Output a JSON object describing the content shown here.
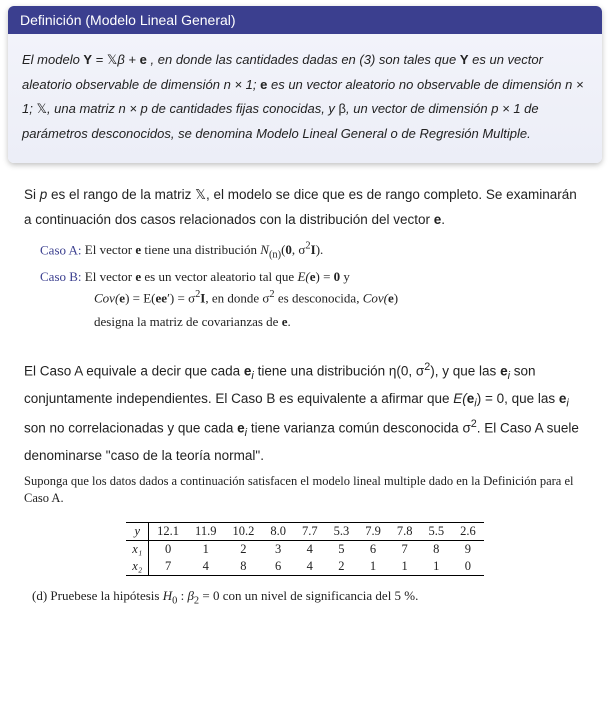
{
  "defbox": {
    "title": "Definición (Modelo Lineal General)",
    "body": {
      "t1": "El modelo ",
      "eq1a": "Y",
      "eq1b": " = ",
      "eq1c": "𝕏",
      "eq1d": "β",
      "eq1e": " + ",
      "eq1f": "e",
      "t2": " , en donde las cantidades dadas en (3) son tales que ",
      "Y": "Y",
      "t3": " es un vector aleatorio observable de dimensión n × 1; ",
      "e": "e",
      "t4": " es un vector aleatorio no observable de dimensión n × 1; ",
      "X": "𝕏",
      "t5": ", una matriz n × p de cantidades fijas conocidas, y ",
      "beta": "β",
      "t6": ", un vector de dimensión p × 1 de parámetros desconocidos, se denomina Modelo Lineal General o de Regresión Multiple."
    }
  },
  "main": {
    "p1a": "Si ",
    "p1b": "p",
    "p1c": " es el rango de la matriz ",
    "p1d": "𝕏",
    "p1e": ", el modelo se dice que es de rango completo. Se examinarán a continuación dos casos relacionados con la distribución del vector ",
    "p1f": "e",
    "p1g": "."
  },
  "caseA": {
    "label": "Caso A:",
    "t1": " El vector ",
    "e": "e",
    "t2": " tiene una distribución ",
    "dist1": "N",
    "distsub": "(n)",
    "dist2": "(",
    "dist3": "0",
    "dist4": ", σ",
    "dist5": "2",
    "dist6": "I",
    "dist7": ")."
  },
  "caseB": {
    "label": "Caso B:",
    "t1": " El vector ",
    "e1": "e",
    "t2": " es un vector aleatorio tal que ",
    "Ee": "E(",
    "Ee2": "e",
    "Ee3": ") = ",
    "Ee4": "0",
    "t2b": " y",
    "l2a": "Cov(",
    "l2b": "e",
    "l2c": ") = E(",
    "l2d": "e",
    "l2e": "e",
    "l2f": "′) = σ",
    "l2g": "2",
    "l2h": "I",
    "l2i": ", en donde σ",
    "l2j": "2",
    "l2k": " es desconocida, ",
    "l2l": "Cov(",
    "l2m": "e",
    "l2n": ")",
    "l3": "designa la matriz de covarianzas de ",
    "l3e": "e",
    "l3dot": "."
  },
  "p2": {
    "t1": "El Caso A equivale a decir que cada ",
    "e1": "e",
    "i1": "i",
    "t2": " tiene una distribución η(0, σ",
    "sq1": "2",
    "t3": "), y que las ",
    "e2": "e",
    "i2": "i",
    "t4": " son conjuntamente independientes. El Caso B es equivalente a afirmar que ",
    "Eei": "E(",
    "Eei_e": "e",
    "Eei_i": "i",
    "Eei2": ") = 0",
    "t5": ", que las ",
    "e3": "e",
    "i3": "i",
    "t6": " son no correlacionadas y que cada ",
    "e4": "e",
    "i4": "i",
    "t7": " tiene varianza común desconocida σ",
    "sq2": "2",
    "t8": ". El Caso A suele denominarse \"caso de la teoría normal\"."
  },
  "supp": "Suponga que los datos dados a continuación satisfacen el modelo lineal multiple dado en la Definición para el Caso A.",
  "table": {
    "rowlabels": [
      "y",
      "x₁",
      "x₂"
    ],
    "rows": [
      [
        "12.1",
        "11.9",
        "10.2",
        "8.0",
        "7.7",
        "5.3",
        "7.9",
        "7.8",
        "5.5",
        "2.6"
      ],
      [
        "0",
        "1",
        "2",
        "3",
        "4",
        "5",
        "6",
        "7",
        "8",
        "9"
      ],
      [
        "7",
        "4",
        "8",
        "6",
        "4",
        "2",
        "1",
        "1",
        "1",
        "0"
      ]
    ]
  },
  "q": {
    "label": "(d)",
    "t1": " Pruebese la hipótesis ",
    "H": "H",
    "H0": "0",
    "colon": " :  ",
    "beta": "β",
    "b2": "2",
    "eq": " = 0",
    "t2": " con un nivel de significancia del 5 %."
  },
  "colors": {
    "header_bg": "#3b3f8f",
    "header_text": "#ffffff",
    "body_bg": "#f2f3fa",
    "accent": "#3b3f8f"
  }
}
